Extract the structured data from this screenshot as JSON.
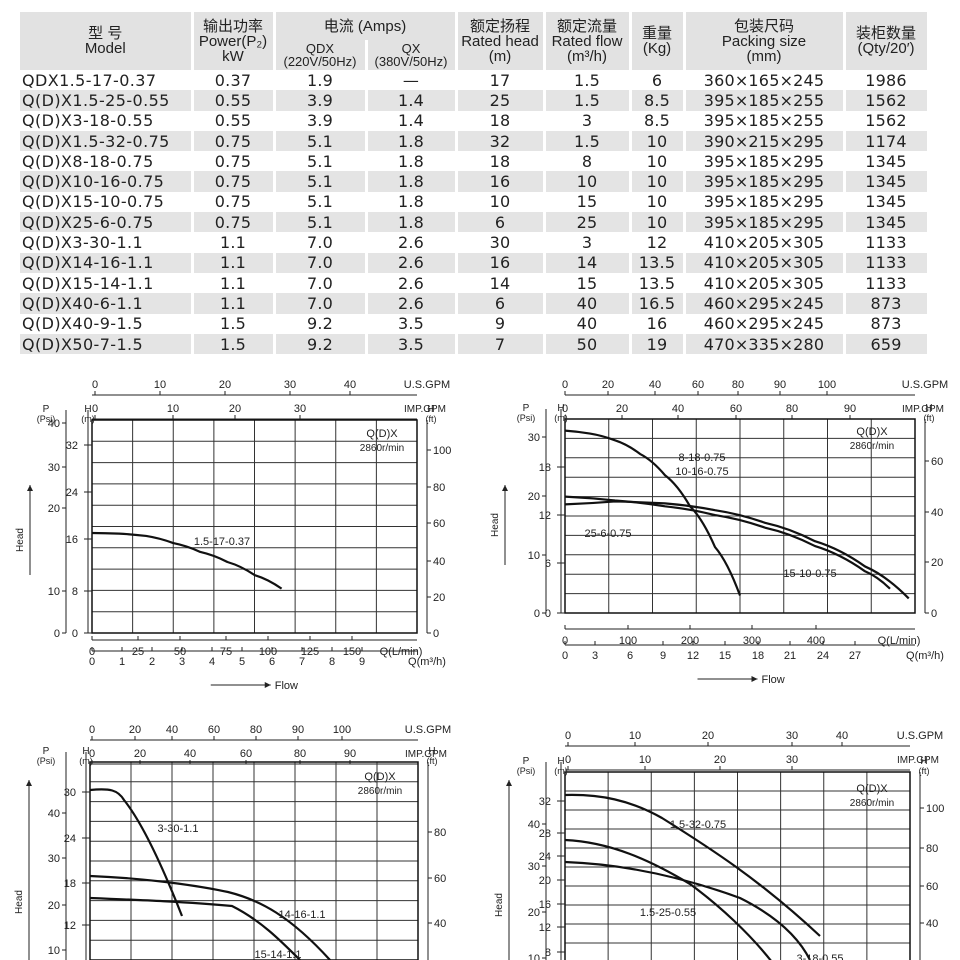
{
  "table": {
    "headers": {
      "model": {
        "zh": "型 号",
        "en": "Model"
      },
      "power": {
        "zh": "输出功率",
        "en": "Power(P₂)",
        "unit": "kW"
      },
      "current": {
        "zh": "电流 (Amps)",
        "qdx": "QDX",
        "qdx_sub": "(220V/50Hz)",
        "qx": "QX",
        "qx_sub": "(380V/50Hz)"
      },
      "head": {
        "zh": "额定扬程",
        "en": "Rated head",
        "unit": "(m)"
      },
      "flow": {
        "zh": "额定流量",
        "en": "Rated flow",
        "unit": "(m³/h)"
      },
      "weight": {
        "zh": "重量",
        "unit": "(Kg)"
      },
      "packing": {
        "zh": "包装尺码",
        "en": "Packing size",
        "unit": "(mm)"
      },
      "qty": {
        "zh": "装柜数量",
        "unit": "(Qty/20′)"
      }
    },
    "rows": [
      {
        "model": "QDX1.5-17-0.37",
        "power": "0.37",
        "qdx": "1.9",
        "qx": "—",
        "head": "17",
        "flow": "1.5",
        "weight": "6",
        "packing": "360×165×245",
        "qty": "1986"
      },
      {
        "model": "Q(D)X1.5-25-0.55",
        "power": "0.55",
        "qdx": "3.9",
        "qx": "1.4",
        "head": "25",
        "flow": "1.5",
        "weight": "8.5",
        "packing": "395×185×255",
        "qty": "1562"
      },
      {
        "model": "Q(D)X3-18-0.55",
        "power": "0.55",
        "qdx": "3.9",
        "qx": "1.4",
        "head": "18",
        "flow": "3",
        "weight": "8.5",
        "packing": "395×185×255",
        "qty": "1562"
      },
      {
        "model": "Q(D)X1.5-32-0.75",
        "power": "0.75",
        "qdx": "5.1",
        "qx": "1.8",
        "head": "32",
        "flow": "1.5",
        "weight": "10",
        "packing": "390×215×295",
        "qty": "1174"
      },
      {
        "model": "Q(D)X8-18-0.75",
        "power": "0.75",
        "qdx": "5.1",
        "qx": "1.8",
        "head": "18",
        "flow": "8",
        "weight": "10",
        "packing": "395×185×295",
        "qty": "1345"
      },
      {
        "model": "Q(D)X10-16-0.75",
        "power": "0.75",
        "qdx": "5.1",
        "qx": "1.8",
        "head": "16",
        "flow": "10",
        "weight": "10",
        "packing": "395×185×295",
        "qty": "1345"
      },
      {
        "model": "Q(D)X15-10-0.75",
        "power": "0.75",
        "qdx": "5.1",
        "qx": "1.8",
        "head": "10",
        "flow": "15",
        "weight": "10",
        "packing": "395×185×295",
        "qty": "1345"
      },
      {
        "model": "Q(D)X25-6-0.75",
        "power": "0.75",
        "qdx": "5.1",
        "qx": "1.8",
        "head": "6",
        "flow": "25",
        "weight": "10",
        "packing": "395×185×295",
        "qty": "1345"
      },
      {
        "model": "Q(D)X3-30-1.1",
        "power": "1.1",
        "qdx": "7.0",
        "qx": "2.6",
        "head": "30",
        "flow": "3",
        "weight": "12",
        "packing": "410×205×305",
        "qty": "1133"
      },
      {
        "model": "Q(D)X14-16-1.1",
        "power": "1.1",
        "qdx": "7.0",
        "qx": "2.6",
        "head": "16",
        "flow": "14",
        "weight": "13.5",
        "packing": "410×205×305",
        "qty": "1133"
      },
      {
        "model": "Q(D)X15-14-1.1",
        "power": "1.1",
        "qdx": "7.0",
        "qx": "2.6",
        "head": "14",
        "flow": "15",
        "weight": "13.5",
        "packing": "410×205×305",
        "qty": "1133"
      },
      {
        "model": "Q(D)X40-6-1.1",
        "power": "1.1",
        "qdx": "7.0",
        "qx": "2.6",
        "head": "6",
        "flow": "40",
        "weight": "16.5",
        "packing": "460×295×245",
        "qty": "873"
      },
      {
        "model": "Q(D)X40-9-1.5",
        "power": "1.5",
        "qdx": "9.2",
        "qx": "3.5",
        "head": "9",
        "flow": "40",
        "weight": "16",
        "packing": "460×295×245",
        "qty": "873"
      },
      {
        "model": "Q(D)X50-7-1.5",
        "power": "1.5",
        "qdx": "9.2",
        "qx": "3.5",
        "head": "7",
        "flow": "50",
        "weight": "19",
        "packing": "470×335×280",
        "qty": "659"
      }
    ]
  },
  "chart_data": [
    {
      "type": "line",
      "ylabel": "Head",
      "xlabel": "Flow",
      "note_title": "Q(D)X",
      "note_speed": "2860r/min",
      "axis_titles": {
        "usgpm": "U.S.GPM",
        "impgpm": "IMP.GPM",
        "lmin": "Q(L/min)",
        "m3h": "Q(m³/h)",
        "p": "P",
        "psi": "(Psi)",
        "h": "H",
        "m": "(m)",
        "ft": "(ft)"
      },
      "xlim_lmin": [
        0,
        180
      ],
      "ylim_m": [
        0,
        36
      ],
      "ticks_usgpm": [
        "0",
        "10",
        "20",
        "30",
        "40"
      ],
      "ticks_impgpm": [
        "0",
        "10",
        "20",
        "30"
      ],
      "ticks_lmin": [
        "0",
        "25",
        "50",
        "75",
        "100",
        "125",
        "150"
      ],
      "ticks_m3h": [
        "0",
        "1",
        "2",
        "3",
        "4",
        "5",
        "6",
        "7",
        "8",
        "9"
      ],
      "ticks_m": [
        "0",
        "8",
        "16",
        "24",
        "32"
      ],
      "ticks_psi": [
        "0",
        "10",
        "20",
        "30",
        "40"
      ],
      "ticks_ft": [
        "0",
        "20",
        "40",
        "60",
        "80",
        "100"
      ],
      "series": [
        {
          "name": "1.5-17-0.37",
          "x_lmin": [
            0,
            15,
            30,
            45,
            60,
            75,
            90,
            105
          ],
          "y_m": [
            16.9,
            16.8,
            16.4,
            15.2,
            13.7,
            12.0,
            9.8,
            7.5
          ]
        }
      ]
    },
    {
      "type": "line",
      "ylabel": "Head",
      "xlabel": "Flow",
      "note_title": "Q(D)X",
      "note_speed": "2860r/min",
      "axis_titles": {
        "usgpm": "U.S.GPM",
        "impgpm": "IMP.GPM",
        "lmin": "Q(L/min)",
        "m3h": "Q(m³/h)",
        "p": "P",
        "psi": "(Psi)",
        "h": "H",
        "m": "(m)",
        "ft": "(ft)"
      },
      "xlim_lmin": [
        0,
        560
      ],
      "ylim_m": [
        0,
        20
      ],
      "ticks_usgpm": [
        "0",
        "20",
        "40",
        "60",
        "80",
        "90",
        "100"
      ],
      "ticks_impgpm": [
        "0",
        "20",
        "40",
        "60",
        "80",
        "90"
      ],
      "ticks_lmin": [
        "0",
        "100",
        "200",
        "300",
        "400"
      ],
      "ticks_m3h": [
        "0",
        "3",
        "6",
        "9",
        "12",
        "15",
        "18",
        "21",
        "24",
        "27"
      ],
      "ticks_m": [
        "0",
        "6",
        "12",
        "18"
      ],
      "ticks_psi": [
        "0",
        "10",
        "20",
        "30"
      ],
      "ticks_ft": [
        "0",
        "20",
        "40",
        "60"
      ],
      "series": [
        {
          "name": "8-18-0.75",
          "x_lmin": [
            0,
            40,
            80,
            120,
            160,
            200,
            240,
            280
          ],
          "y_m": [
            18.8,
            18.5,
            17.8,
            16.4,
            14.2,
            11.0,
            6.8,
            1.8
          ]
        },
        {
          "name": "10-16-0.75",
          "x_lmin": [],
          "y_m": []
        },
        {
          "name": "15-10-0.75",
          "x_lmin": [
            0,
            80,
            160,
            240,
            320,
            400,
            480,
            520
          ],
          "y_m": [
            12.0,
            11.6,
            11.0,
            10.1,
            8.8,
            6.9,
            4.3,
            2.5
          ]
        },
        {
          "name": "25-6-0.75",
          "x_lmin": [
            0,
            80,
            160,
            240,
            320,
            400,
            480,
            550
          ],
          "y_m": [
            11.2,
            11.5,
            11.3,
            10.6,
            9.3,
            7.4,
            4.8,
            1.5
          ]
        }
      ]
    },
    {
      "type": "line",
      "ylabel": "Head",
      "note_title": "Q(D)X",
      "note_speed": "2860r/min",
      "axis_titles": {
        "usgpm": "U.S.GPM",
        "impgpm": "IMP.GPM",
        "p": "P",
        "psi": "(Psi)",
        "h": "H",
        "m": "(m)",
        "ft": "(ft)"
      },
      "ticks_usgpm": [
        "0",
        "20",
        "40",
        "60",
        "80",
        "90",
        "100"
      ],
      "ticks_impgpm": [
        "0",
        "20",
        "40",
        "60",
        "80",
        "90"
      ],
      "ticks_m": [
        "12",
        "18",
        "24",
        "30"
      ],
      "ticks_psi": [
        "10",
        "20",
        "30",
        "40"
      ],
      "ticks_ft": [
        "40",
        "60",
        "80"
      ],
      "series": [
        {
          "name": "3-30-1.1"
        },
        {
          "name": "14-16-1.1"
        },
        {
          "name": "15-14-1.1"
        }
      ]
    },
    {
      "type": "line",
      "ylabel": "Head",
      "note_title": "Q(D)X",
      "note_speed": "2860r/min",
      "axis_titles": {
        "usgpm": "U.S.GPM",
        "impgpm": "IMP.GPM",
        "p": "P",
        "psi": "(Psi)",
        "h": "H",
        "m": "(m)",
        "ft": "(ft)"
      },
      "ticks_usgpm": [
        "0",
        "10",
        "20",
        "30",
        "40"
      ],
      "ticks_impgpm": [
        "0",
        "10",
        "20",
        "30"
      ],
      "ticks_m": [
        "8",
        "12",
        "16",
        "20",
        "24",
        "28",
        "32"
      ],
      "ticks_psi": [
        "10",
        "20",
        "30",
        "40"
      ],
      "ticks_ft": [
        "40",
        "60",
        "80",
        "100"
      ],
      "series": [
        {
          "name": "1.5-32-0.75"
        },
        {
          "name": "1.5-25-0.55"
        },
        {
          "name": "3-18-0.55"
        }
      ]
    }
  ]
}
